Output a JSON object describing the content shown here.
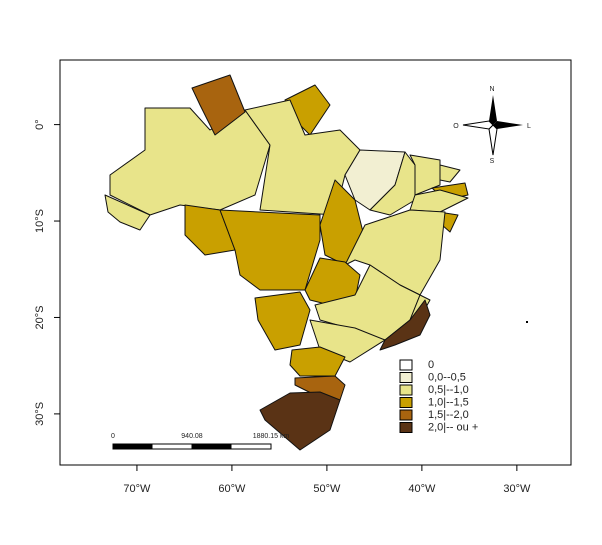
{
  "map": {
    "xlim": [
      -78.1,
      -24.3
    ],
    "ylim": [
      -35.3,
      6.7
    ],
    "x_ticks": [
      {
        "value": -70,
        "label": "70°W"
      },
      {
        "value": -60,
        "label": "60°W"
      },
      {
        "value": -50,
        "label": "50°W"
      },
      {
        "value": -40,
        "label": "40°W"
      },
      {
        "value": -30,
        "label": "30°W"
      }
    ],
    "y_ticks": [
      {
        "value": 0,
        "label": "0°"
      },
      {
        "value": -10,
        "label": "10°S"
      },
      {
        "value": -20,
        "label": "20°S"
      },
      {
        "value": -30,
        "label": "30°S"
      }
    ],
    "legend": [
      {
        "label": "0",
        "color": "#ffffff"
      },
      {
        "label": "0,0--0,5",
        "color": "#f2efd2"
      },
      {
        "label": "0,5|--1,0",
        "color": "#e8e48a"
      },
      {
        "label": "1,0|--1,5",
        "color": "#c9a000"
      },
      {
        "label": "1,5|--2,0",
        "color": "#a8640f"
      },
      {
        "label": "2,0|-- ou +",
        "color": "#5a3315"
      }
    ],
    "compass": {
      "north": "N",
      "south": "S",
      "west": "O",
      "east": "L"
    },
    "scale_bar": {
      "labels": [
        "0",
        "940.08",
        "1880.15 km"
      ]
    }
  }
}
